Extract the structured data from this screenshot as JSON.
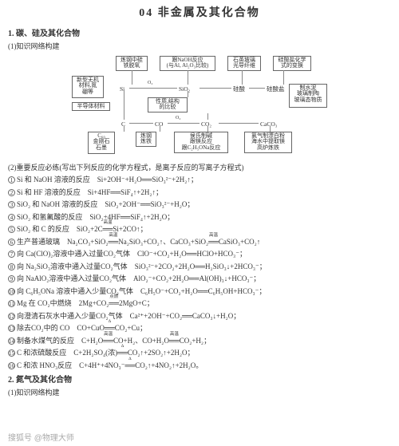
{
  "title": "04   非金属及其化合物",
  "s1": {
    "head": "1. 碳、硅及其化合物",
    "sub": "(1)知识网络构建"
  },
  "diagram": {
    "b1": "炼钢中硅\n铁脱氧",
    "b2": "跟NaOH反应\n(与Al, Al₂O₃比较)",
    "b3": "石英玻璃\n光导纤维",
    "b4": "硅酸盐化学\n式的变换",
    "b5": "新型无机\n材料,氮\n硼等",
    "b6": "半导体材料",
    "b7": "C₆₀\n金刚石\n石墨",
    "b8": "炼钢\n炼铁",
    "b9": "侯氏制碱\n跟镁反应\n跟C₂H₅ONa反应",
    "b10": "氯气制漂白粉\n海水中提取镁\n高炉炼铁",
    "b11": "制水泥\n玻璃制陶\n玻璃态物质",
    "n_si": "Si",
    "n_sio2": "SiO₂",
    "n_si_acid": "硅酸",
    "n_si_salt": "硅酸盐",
    "n_c": "C",
    "n_co": "CO",
    "n_co2": "CO₂",
    "n_caco3": "CaCO₃",
    "mid": "性质,结构\n的比较",
    "o2a": "O₂",
    "o2b": "O₂"
  },
  "s2": "(2)重要反应必练(写出下列反应的化学方程式，是离子反应的写离子方程式)",
  "eqs": {
    "e1": {
      "n": "1",
      "t": "Si 和 NaOH 溶液的反应",
      "f": "Si+2OH⁻+H₂O══SiO₃²⁻+2H₂↑；"
    },
    "e2": {
      "n": "2",
      "t": "Si 和 HF 溶液的反应",
      "f": "Si+4HF══SiF₄↑+2H₂↑；"
    },
    "e3": {
      "n": "3",
      "t": "SiO₂ 和 NaOH 溶液的反应",
      "f": "SiO₂+2OH⁻══SiO₃²⁻+H₂O；"
    },
    "e4": {
      "n": "4",
      "t": "SiO₂ 和氢氟酸的反应",
      "f": "SiO₂+4HF══SiF₄↑+2H₂O；"
    },
    "e5": {
      "n": "5",
      "t": "SiO₂ 和 C 的反应",
      "c": "高温",
      "f": "SiO₂+2C══Si+2CO↑；"
    },
    "e6": {
      "n": "6",
      "t": "生产普通玻璃",
      "c": "高温",
      "f": "Na₂CO₃+SiO₂══Na₂SiO₃+CO₂↑、CaCO₃+SiO₂══CaSiO₃+CO₂↑"
    },
    "e7": {
      "n": "7",
      "t": "向 Ca(ClO)₂溶液中通入过量CO₂气体",
      "f": "ClO⁻+CO₂+H₂O══HClO+HCO₃⁻；"
    },
    "e8": {
      "n": "8",
      "t": "向 Na₂SiO₃溶液中通入过量CO₂气体",
      "f": "SiO₃²⁻+2CO₂+2H₂O══H₂SiO₃↓+2HCO₃⁻；"
    },
    "e9": {
      "n": "9",
      "t": "向 NaAlO₂溶液中通入过量CO₂气体",
      "f": "AlO₂⁻+CO₂+2H₂O══Al(OH)₃↓+HCO₃⁻；"
    },
    "e10": {
      "n": "10",
      "t": "向 C₆H₅ONa 溶液中通入少量CO₂气体",
      "f": "C₆H₅O⁻+CO₂+H₂O══C₆H₅OH+HCO₃⁻；"
    },
    "e11": {
      "n": "11",
      "t": "Mg 在 CO₂中燃烧",
      "c": "点燃",
      "f": "2Mg+CO₂══2MgO+C；"
    },
    "e12": {
      "n": "12",
      "t": "向澄清石灰水中通入少量CO₂气体",
      "f": "Ca²⁺+2OH⁻+CO₂══CaCO₃↓+H₂O；"
    },
    "e13": {
      "n": "13",
      "t": "除去CO₂中的 CO",
      "c": "Δ",
      "f": "CO+CuO══CO₂+Cu；"
    },
    "e14": {
      "n": "14",
      "t": "制备水煤气的反应",
      "c": "高温",
      "f": "C+H₂O══CO+H₂、CO+H₂O══CO₂+H₂；"
    },
    "e15": {
      "n": "15",
      "t": "C 和浓硫酸反应",
      "c": "Δ",
      "f": "C+2H₂SO₄(浓)══CO₂↑+2SO₂↑+2H₂O；"
    },
    "e16": {
      "n": "16",
      "t": "C 和浓 HNO₃反应",
      "c": "Δ",
      "f": "C+4H⁺+4NO₃⁻══CO₂↑+4NO₂↑+2H₂O。"
    }
  },
  "s3": {
    "head": "2. 氮气及其化合物",
    "sub": "(1)知识网络构建"
  },
  "wm": "搜狐号 @物理大师"
}
